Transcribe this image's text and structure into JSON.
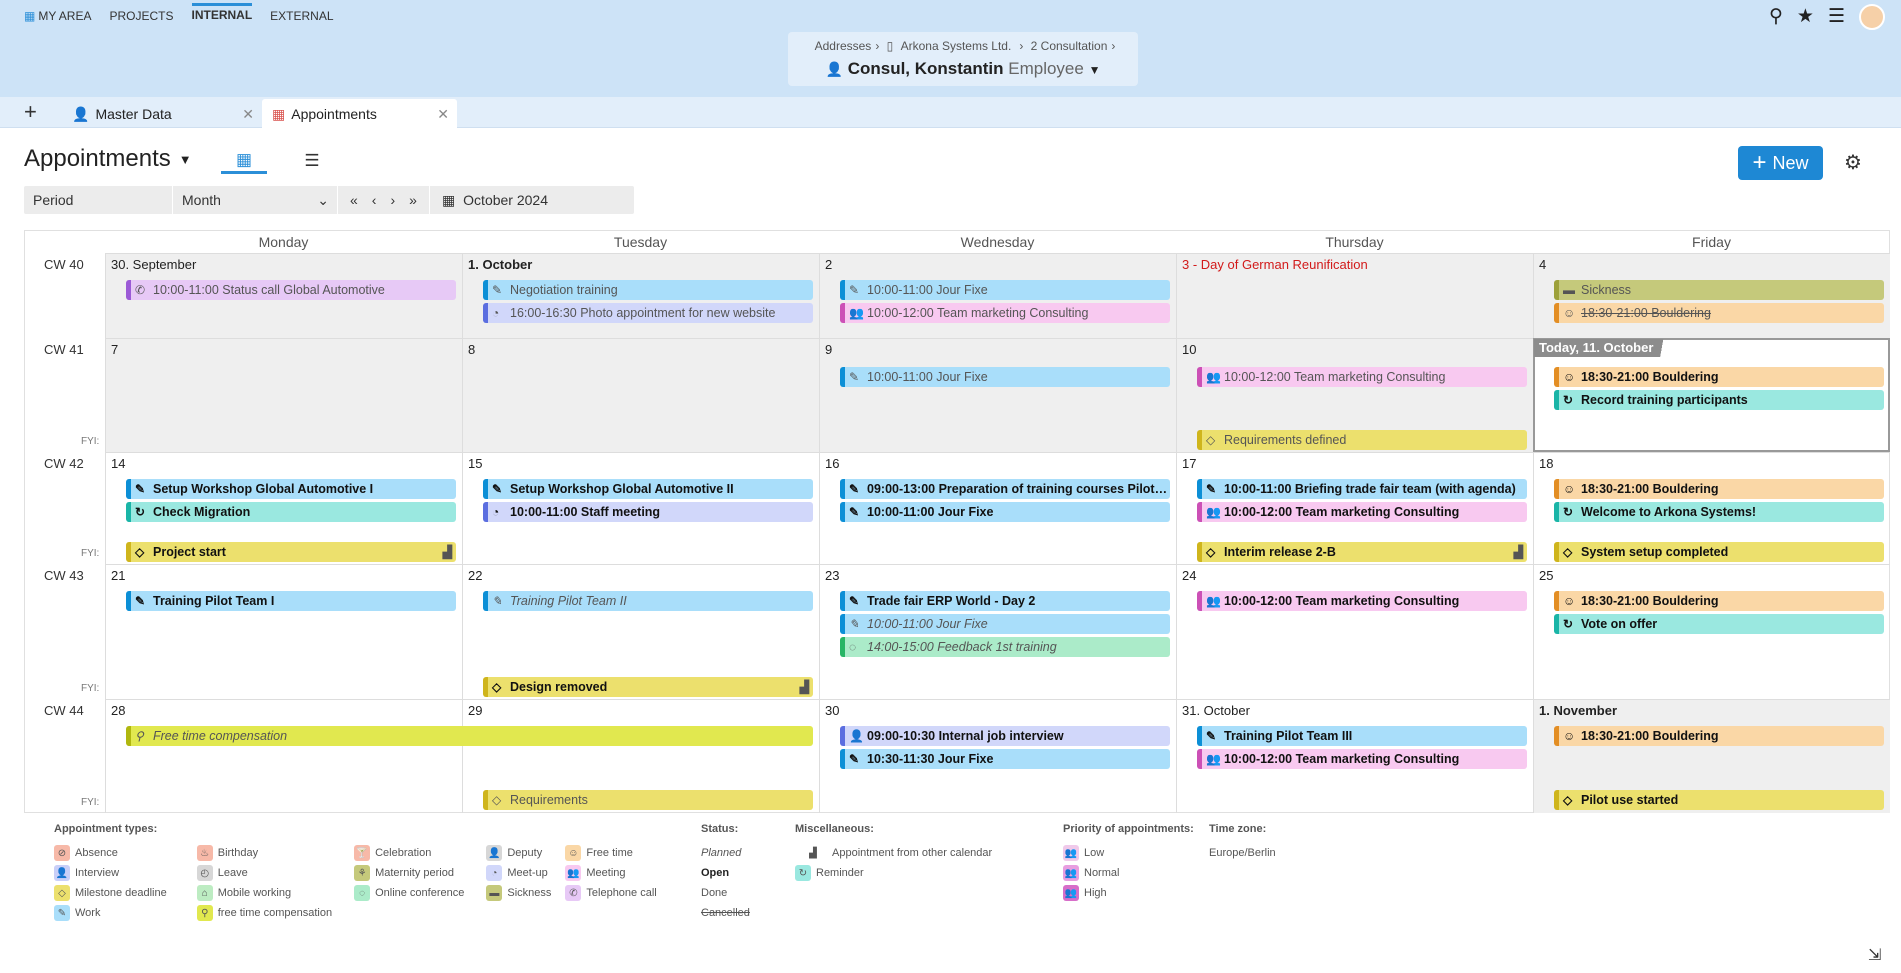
{
  "topnav": {
    "my_area": "MY AREA",
    "projects": "PROJECTS",
    "internal": "INTERNAL",
    "external": "EXTERNAL"
  },
  "breadcrumb": {
    "addresses": "Addresses",
    "company": "Arkona Systems Ltd.",
    "consultation": "2 Consultation"
  },
  "person": {
    "name": "Consul, Konstantin",
    "role": "Employee"
  },
  "tabs": {
    "master": "Master Data",
    "appointments": "Appointments"
  },
  "header": {
    "title": "Appointments",
    "new_button": "New"
  },
  "period": {
    "label": "Period",
    "mode": "Month",
    "month": "October 2024"
  },
  "weekdays": [
    "Monday",
    "Tuesday",
    "Wednesday",
    "Thursday",
    "Friday"
  ],
  "fyi_label": "FYI:",
  "weeks": [
    {
      "cw": "CW 40",
      "days": [
        "30. September",
        "1. October",
        "2",
        "3 - Day of German Reunification",
        "4"
      ]
    },
    {
      "cw": "CW 41",
      "days": [
        "7",
        "8",
        "9",
        "10",
        "Today, 11. October"
      ]
    },
    {
      "cw": "CW 42",
      "days": [
        "14",
        "15",
        "16",
        "17",
        "18"
      ]
    },
    {
      "cw": "CW 43",
      "days": [
        "21",
        "22",
        "23",
        "24",
        "25"
      ]
    },
    {
      "cw": "CW 44",
      "days": [
        "28",
        "29",
        "30",
        "31. October",
        "1. November"
      ]
    }
  ],
  "events": {
    "w0_mon_1": "10:00-11:00 Status call Global Automotive",
    "w0_tue_1": "Negotiation training",
    "w0_tue_2": "16:00-16:30 Photo appointment for new website",
    "w0_wed_1": "10:00-11:00 Jour Fixe",
    "w0_wed_2": "10:00-12:00 Team marketing Consulting",
    "w0_fri_1": "Sickness",
    "w0_fri_2": "18:30-21:00 Bouldering",
    "w1_wed_1": "10:00-11:00 Jour Fixe",
    "w1_thu_1": "10:00-12:00 Team marketing Consulting",
    "w1_thu_fyi": "Requirements defined",
    "w1_fri_1": "18:30-21:00 Bouldering",
    "w1_fri_2": "Record training participants",
    "w2_mon_1": "Setup Workshop Global Automotive I",
    "w2_mon_2": "Check Migration",
    "w2_mon_fyi": "Project start",
    "w2_tue_1": "Setup Workshop Global Automotive II",
    "w2_tue_2": "10:00-11:00 Staff meeting",
    "w2_wed_1": "09:00-13:00 Preparation of training courses Pilot Te...",
    "w2_wed_2": "10:00-11:00 Jour Fixe",
    "w2_thu_1": "10:00-11:00 Briefing trade fair team (with agenda)",
    "w2_thu_2": "10:00-12:00 Team marketing Consulting",
    "w2_thu_fyi": "Interim release 2-B",
    "w2_fri_1": "18:30-21:00 Bouldering",
    "w2_fri_2": "Welcome to Arkona Systems!",
    "w2_fri_fyi": "System setup completed",
    "w3_mon_1": "Training Pilot Team I",
    "w3_tue_1": "Training Pilot Team II",
    "w3_tue_fyi": "Design removed",
    "w3_wed_1": "Trade fair ERP World - Day 2",
    "w3_wed_2": "10:00-11:00 Jour Fixe",
    "w3_wed_3": "14:00-15:00 Feedback 1st training",
    "w3_thu_1": "10:00-12:00 Team marketing Consulting",
    "w3_fri_1": "18:30-21:00 Bouldering",
    "w3_fri_2": "Vote on offer",
    "w4_mon_1": "Free time compensation",
    "w4_tue_fyi": "Requirements",
    "w4_wed_1": "09:00-10:30 Internal job interview",
    "w4_wed_2": "10:30-11:30 Jour Fixe",
    "w4_thu_1": "Training Pilot Team III",
    "w4_thu_2": "10:00-12:00 Team marketing Consulting",
    "w4_fri_1": "18:30-21:00 Bouldering",
    "w4_fri_fyi": "Pilot use started"
  },
  "legend": {
    "types_title": "Appointment types:",
    "types": [
      "Absence",
      "Interview",
      "Milestone deadline",
      "Work",
      "Birthday",
      "Leave",
      "Mobile working",
      "free time compensation",
      "Celebration",
      "Maternity period",
      "Online conference",
      "Deputy",
      "Meet-up",
      "Sickness",
      "Free time",
      "Meeting",
      "Telephone call"
    ],
    "status_title": "Status:",
    "status": [
      "Planned",
      "Open",
      "Done",
      "Cancelled"
    ],
    "misc_title": "Miscellaneous:",
    "misc": [
      "Appointment from other calendar",
      "Reminder"
    ],
    "priority_title": "Priority of appointments:",
    "priority": [
      "Low",
      "Normal",
      "High"
    ],
    "tz_title": "Time zone:",
    "tz": "Europe/Berlin"
  },
  "colors": {
    "accent": "#1e88d4",
    "header_bg": "#cde3f7",
    "holiday": "#d21a1a"
  }
}
